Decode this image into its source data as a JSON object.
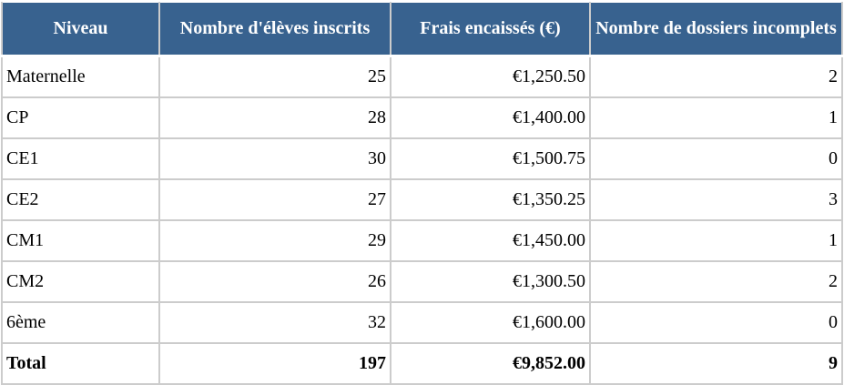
{
  "chart_data": {
    "type": "table",
    "title": "",
    "columns": [
      "Niveau",
      "Nombre d'élèves inscrits",
      "Frais encaissés (€)",
      "Nombre de dossiers incomplets"
    ],
    "rows": [
      [
        "Maternelle",
        "25",
        "€1,250.50",
        "2"
      ],
      [
        "CP",
        "28",
        "€1,400.00",
        "1"
      ],
      [
        "CE1",
        "30",
        "€1,500.75",
        "0"
      ],
      [
        "CE2",
        "27",
        "€1,350.25",
        "3"
      ],
      [
        "CM1",
        "29",
        "€1,450.00",
        "1"
      ],
      [
        "CM2",
        "26",
        "€1,300.50",
        "2"
      ],
      [
        "6ème",
        "32",
        "€1,600.00",
        "0"
      ],
      [
        "Total",
        "197",
        "€9,852.00",
        "9"
      ]
    ],
    "total_row_index": 7,
    "layout_hints": {
      "header_align": "center",
      "numeric_align": "right",
      "first_column_align": "left",
      "total_row_bold": true,
      "grid": true
    }
  },
  "colors": {
    "header_bg": "#38628F",
    "header_text": "#FFFFFF",
    "border": "#CCCCCC",
    "row_bg": "#FFFFFF",
    "body_text": "#000000"
  }
}
